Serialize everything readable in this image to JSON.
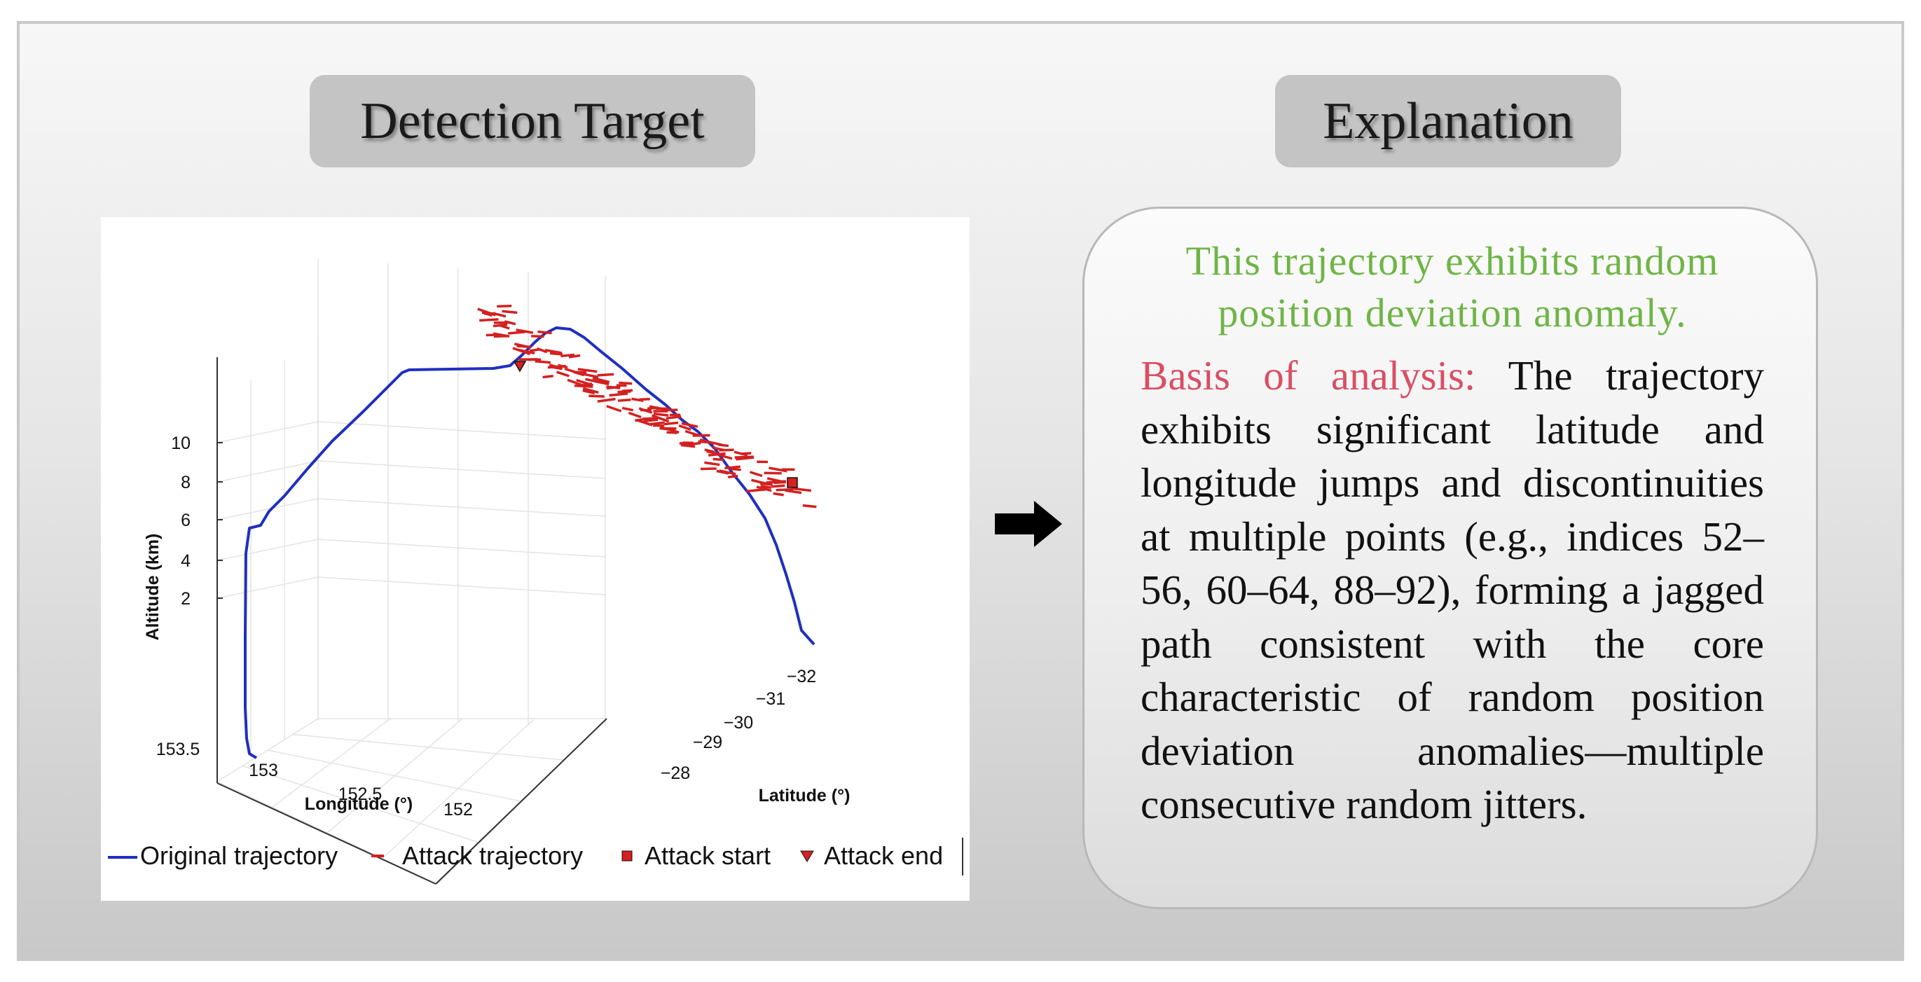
{
  "headers": {
    "left": "Detection Target",
    "right": "Explanation"
  },
  "explanation": {
    "summary": "This trajectory exhibits random position deviation anomaly.",
    "basis_label": "Basis of analysis:",
    "basis_text": " The trajectory exhibits significant latitude and longitude jumps and discontinuities at multiple points (e.g., indices 52–56, 60–64, 88–92), forming a jagged path consistent with the core characteristic of random position deviation anomalies—multiple consecutive random jitters."
  },
  "arrow": {
    "icon": "right-arrow-icon"
  },
  "chart_data": {
    "type": "line3d",
    "axes": {
      "z": {
        "label": "Altitude (km)",
        "ticks": [
          "2",
          "4",
          "6",
          "8",
          "10"
        ]
      },
      "x": {
        "label": "Longitude (°)",
        "ticks": [
          "153.5",
          "153",
          "152.5",
          "152"
        ]
      },
      "y": {
        "label": "Latitude (°)",
        "ticks": [
          "−28",
          "−29",
          "−30",
          "−31",
          "−32"
        ]
      }
    },
    "grid": true,
    "legend": {
      "position": "bottom",
      "items": [
        {
          "label": "Original trajectory",
          "style": "line",
          "color": "#1f2fbf"
        },
        {
          "label": "Attack trajectory",
          "style": "dashed",
          "color": "#d42020"
        },
        {
          "label": "Attack start",
          "style": "square",
          "color": "#d42020"
        },
        {
          "label": "Attack end",
          "style": "triangle-down",
          "color": "#d42020"
        }
      ]
    },
    "series": [
      {
        "name": "Original trajectory",
        "color": "#1f2fbf"
      },
      {
        "name": "Attack trajectory",
        "color": "#d42020"
      },
      {
        "name": "Attack start",
        "color": "#d42020"
      },
      {
        "name": "Attack end",
        "color": "#d42020"
      }
    ]
  }
}
